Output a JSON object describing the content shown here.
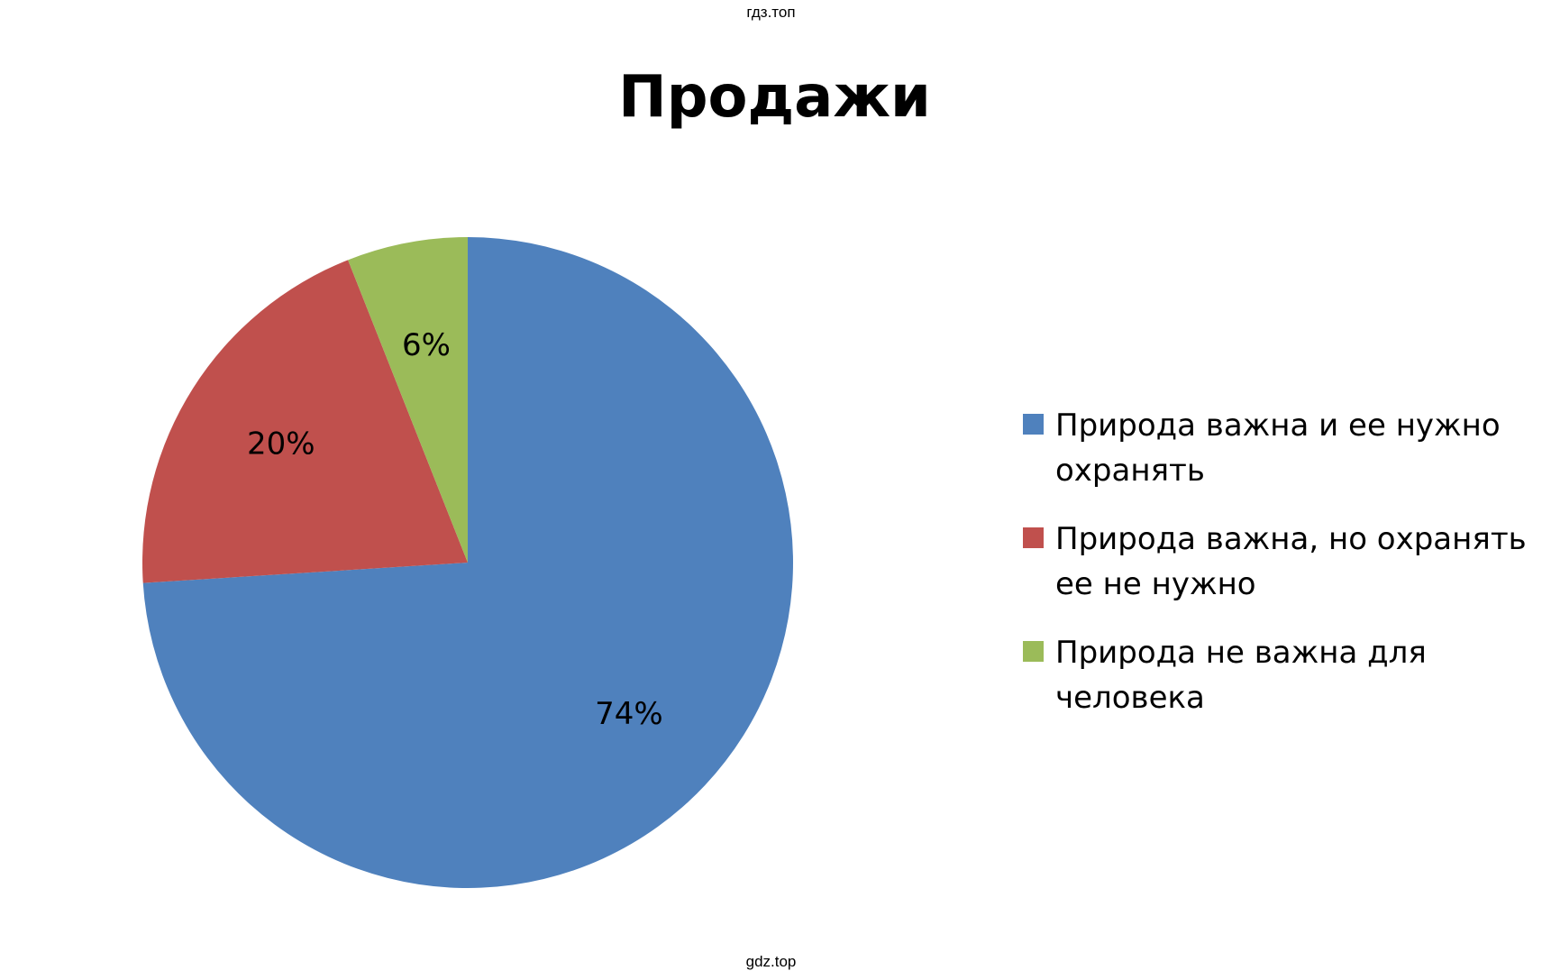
{
  "watermark": {
    "top": "гдз.топ",
    "bottom": "gdz.top"
  },
  "chart_data": {
    "type": "pie",
    "title": "Продажи",
    "categories": [
      "Природа важна и ее нужно охранять",
      "Природа важна, но охранять ее не нужно",
      "Природа не важна для человека"
    ],
    "values": [
      74,
      20,
      6
    ],
    "data_labels": [
      "74%",
      "20%",
      "6%"
    ],
    "colors": [
      "#4F81BD",
      "#C0504D",
      "#9BBB59"
    ],
    "legend_position": "right",
    "start_angle": "12 o'clock",
    "direction": "clockwise"
  }
}
